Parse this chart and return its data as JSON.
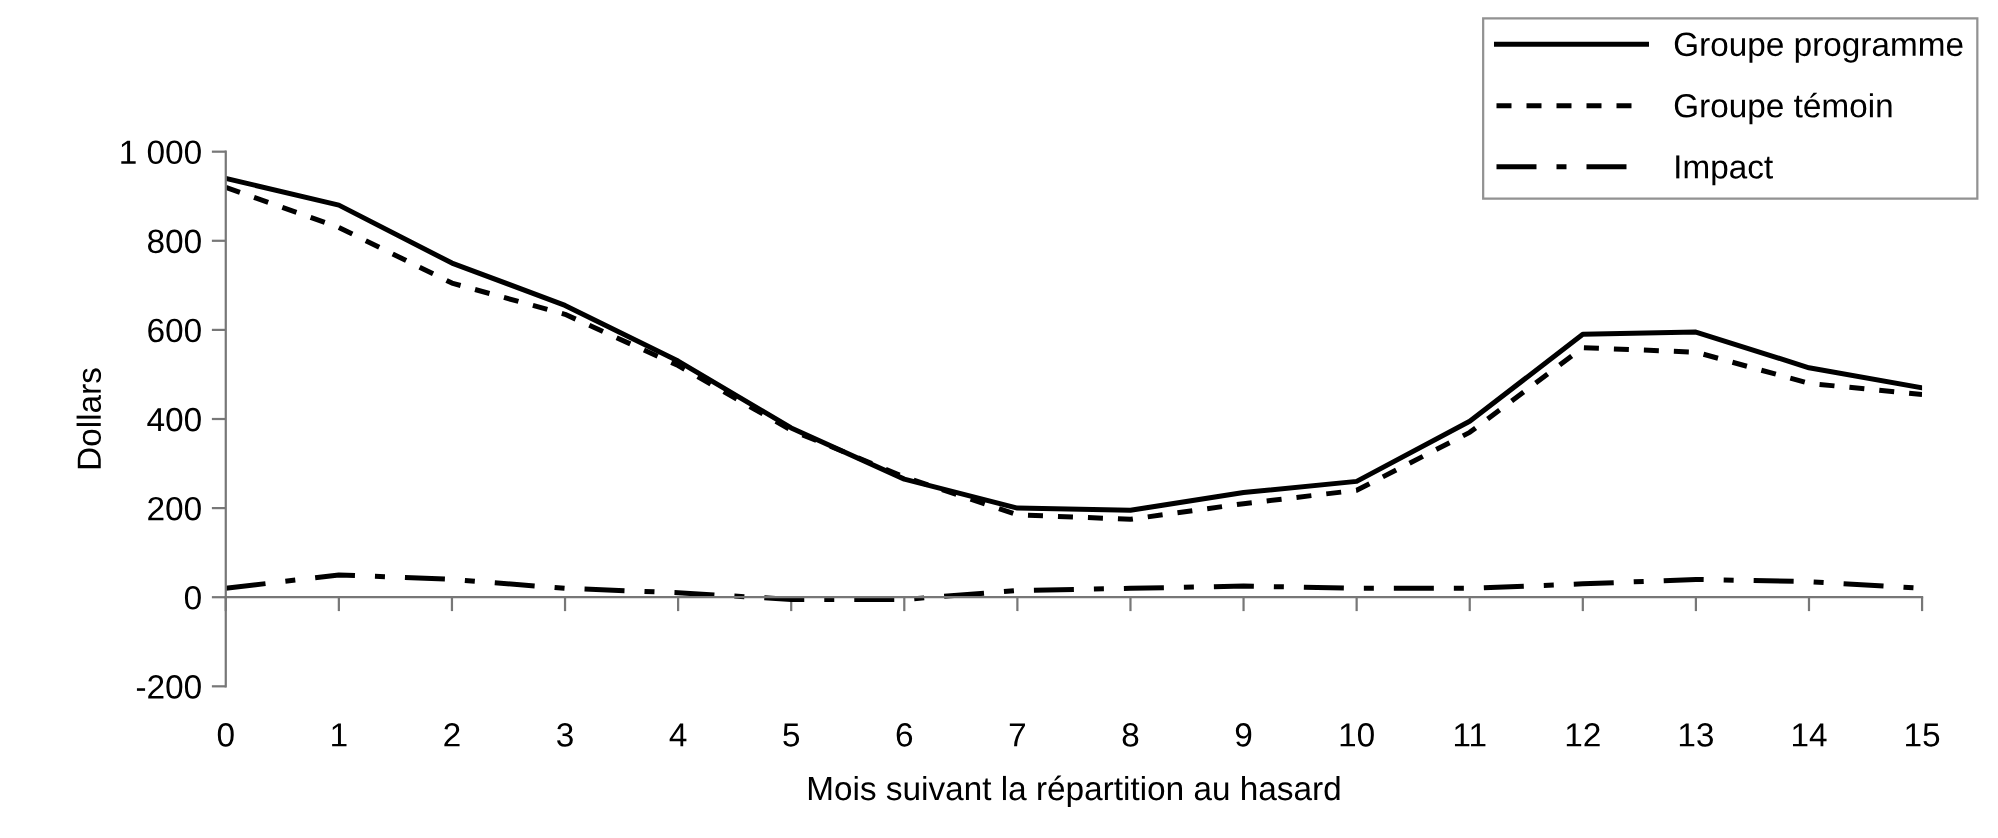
{
  "chart_data": {
    "type": "line",
    "xlabel": "Mois suivant la répartition au hasard",
    "ylabel": "Dollars",
    "x": [
      0,
      1,
      2,
      3,
      4,
      5,
      6,
      7,
      8,
      9,
      10,
      11,
      12,
      13,
      14,
      15
    ],
    "series": [
      {
        "name": "Groupe programme",
        "color": "#000000",
        "line_style": "solid",
        "values": [
          940,
          880,
          750,
          655,
          530,
          380,
          265,
          200,
          195,
          235,
          260,
          395,
          590,
          595,
          515,
          470
        ]
      },
      {
        "name": "Groupe témoin",
        "color": "#000000",
        "line_style": "dotted",
        "values": [
          920,
          830,
          705,
          635,
          520,
          375,
          270,
          185,
          175,
          210,
          240,
          370,
          560,
          550,
          480,
          455
        ]
      },
      {
        "name": "Impact",
        "color": "#000000",
        "line_style": "dashdot",
        "values": [
          20,
          50,
          40,
          20,
          10,
          -5,
          -5,
          15,
          20,
          25,
          20,
          20,
          30,
          40,
          35,
          20
        ]
      }
    ],
    "xlim": [
      0,
      15
    ],
    "xticks": [
      0,
      1,
      2,
      3,
      4,
      5,
      6,
      7,
      8,
      9,
      10,
      11,
      12,
      13,
      14,
      15
    ],
    "ylim": [
      -200,
      1000
    ],
    "yticks": [
      -200,
      0,
      200,
      400,
      600,
      {
        "value": 800,
        "label": "800"
      },
      {
        "value": 1000,
        "label": "1 000"
      }
    ],
    "legend": "top right",
    "marker": "none"
  }
}
